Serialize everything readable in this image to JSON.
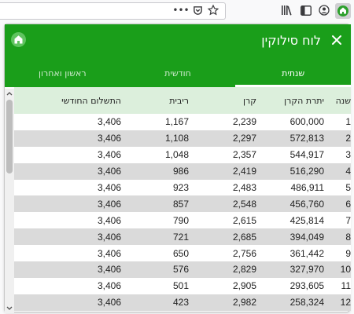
{
  "browser": {
    "overflow_menu": "•••",
    "icons": [
      "overflow-menu-icon",
      "pocket-icon",
      "bookmark-star-icon",
      "library-icon",
      "sidebar-icon",
      "account-icon",
      "extension-house-icon"
    ]
  },
  "header": {
    "title": "לוח סילוקין",
    "accent_color": "#1a9e1a"
  },
  "tabs": [
    {
      "label": "שנתית",
      "active": true
    },
    {
      "label": "חודשית",
      "active": false
    },
    {
      "label": "ראשון ואחרון",
      "active": false
    }
  ],
  "table": {
    "columns": [
      "שנה",
      "יתרת הקרן",
      "קרן",
      "ריבית",
      "התשלום החודשי"
    ],
    "rows": [
      [
        "1",
        "600,000",
        "2,239",
        "1,167",
        "3,406"
      ],
      [
        "2",
        "572,813",
        "2,297",
        "1,108",
        "3,406"
      ],
      [
        "3",
        "544,917",
        "2,357",
        "1,048",
        "3,406"
      ],
      [
        "4",
        "516,290",
        "2,419",
        "986",
        "3,406"
      ],
      [
        "5",
        "486,911",
        "2,483",
        "923",
        "3,406"
      ],
      [
        "6",
        "456,760",
        "2,548",
        "857",
        "3,406"
      ],
      [
        "7",
        "425,814",
        "2,615",
        "790",
        "3,406"
      ],
      [
        "8",
        "394,049",
        "2,685",
        "721",
        "3,406"
      ],
      [
        "9",
        "361,442",
        "2,756",
        "650",
        "3,406"
      ],
      [
        "10",
        "327,970",
        "2,829",
        "576",
        "3,406"
      ],
      [
        "11",
        "293,605",
        "2,905",
        "501",
        "3,406"
      ],
      [
        "12",
        "258,324",
        "2,982",
        "423",
        "3,406"
      ]
    ]
  }
}
